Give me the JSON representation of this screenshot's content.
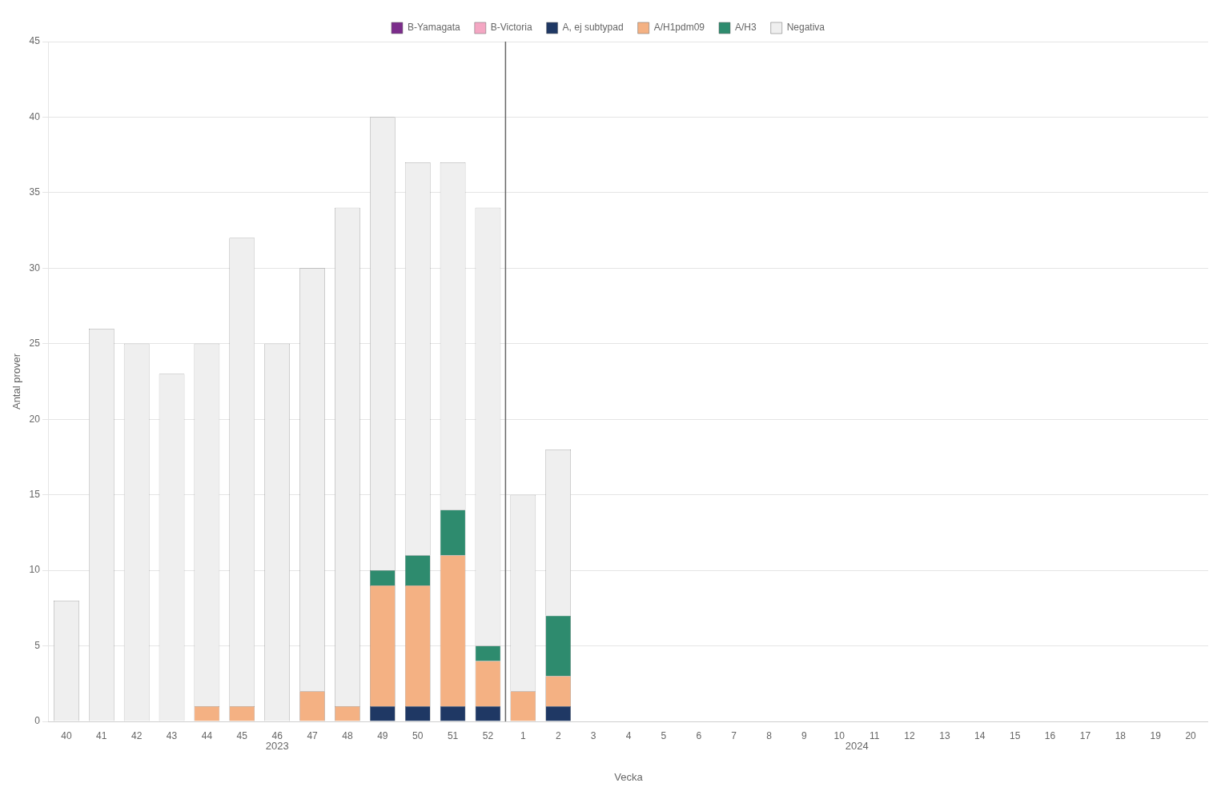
{
  "chart_data": {
    "type": "bar",
    "stacked": true,
    "xlabel": "Vecka",
    "ylabel": "Antal prover",
    "categories": [
      "40",
      "41",
      "42",
      "43",
      "44",
      "45",
      "46",
      "47",
      "48",
      "49",
      "50",
      "51",
      "52",
      "1",
      "2",
      "3",
      "4",
      "5",
      "6",
      "7",
      "8",
      "9",
      "10",
      "11",
      "12",
      "13",
      "14",
      "15",
      "16",
      "17",
      "18",
      "19",
      "20"
    ],
    "series": [
      {
        "name": "B-Yamagata",
        "color": "#7B2D8B",
        "values": [
          0,
          0,
          0,
          0,
          0,
          0,
          0,
          0,
          0,
          0,
          0,
          0,
          0,
          0,
          0,
          0,
          0,
          0,
          0,
          0,
          0,
          0,
          0,
          0,
          0,
          0,
          0,
          0,
          0,
          0,
          0,
          0,
          0
        ]
      },
      {
        "name": "B-Victoria",
        "color": "#F4A7C3",
        "values": [
          0,
          0,
          0,
          0,
          0,
          0,
          0,
          0,
          0,
          0,
          0,
          0,
          0,
          0,
          0,
          0,
          0,
          0,
          0,
          0,
          0,
          0,
          0,
          0,
          0,
          0,
          0,
          0,
          0,
          0,
          0,
          0,
          0
        ]
      },
      {
        "name": "A, ej subtypad",
        "color": "#1F3864",
        "values": [
          0,
          0,
          0,
          0,
          0,
          0,
          0,
          0,
          0,
          1,
          1,
          1,
          1,
          0,
          1,
          0,
          0,
          0,
          0,
          0,
          0,
          0,
          0,
          0,
          0,
          0,
          0,
          0,
          0,
          0,
          0,
          0,
          0
        ]
      },
      {
        "name": "A/H1pdm09",
        "color": "#F4B183",
        "values": [
          0,
          0,
          0,
          0,
          1,
          1,
          0,
          2,
          1,
          8,
          8,
          10,
          3,
          2,
          2,
          0,
          0,
          0,
          0,
          0,
          0,
          0,
          0,
          0,
          0,
          0,
          0,
          0,
          0,
          0,
          0,
          0,
          0
        ]
      },
      {
        "name": "A/H3",
        "color": "#2E8B6E",
        "values": [
          0,
          0,
          0,
          0,
          0,
          0,
          0,
          0,
          0,
          1,
          2,
          3,
          1,
          0,
          4,
          0,
          0,
          0,
          0,
          0,
          0,
          0,
          0,
          0,
          0,
          0,
          0,
          0,
          0,
          0,
          0,
          0,
          0
        ]
      },
      {
        "name": "Negativa",
        "color": "#EFEFEF",
        "values": [
          8,
          26,
          25,
          23,
          24,
          31,
          25,
          28,
          33,
          30,
          26,
          23,
          29,
          13,
          11,
          0,
          0,
          0,
          0,
          0,
          0,
          0,
          0,
          0,
          0,
          0,
          0,
          0,
          0,
          0,
          0,
          0,
          0
        ]
      }
    ],
    "ylim": [
      0,
      45
    ],
    "yticks": [
      0,
      5,
      10,
      15,
      20,
      25,
      30,
      35,
      40,
      45
    ],
    "grid": true,
    "legend": "top",
    "annotations": [
      {
        "text": "2023",
        "from": "40",
        "to": "52"
      },
      {
        "text": "2024",
        "from": "1",
        "to": "20"
      }
    ]
  }
}
